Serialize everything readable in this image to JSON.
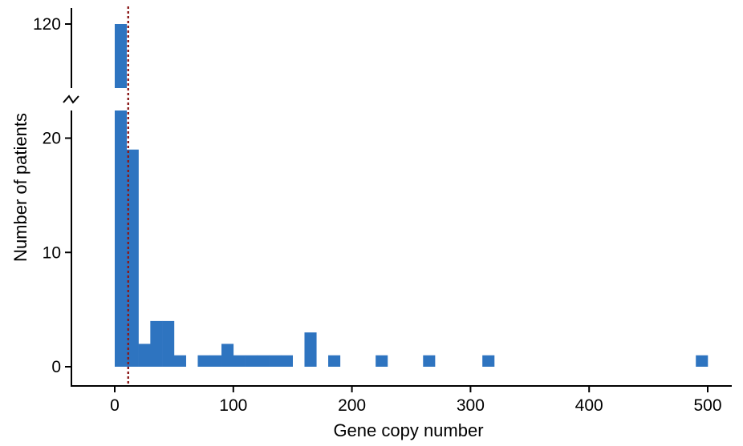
{
  "chart_data": {
    "type": "bar",
    "subtype": "histogram",
    "title": "",
    "xlabel": "Gene copy number",
    "ylabel": "Number of patients",
    "bin_width": 10,
    "x_ticks": [
      0,
      100,
      200,
      300,
      400,
      500
    ],
    "xlim": [
      -35,
      520
    ],
    "y_axis_break": true,
    "y_lower": {
      "ticks": [
        0,
        10,
        20
      ],
      "ylim": [
        0,
        22
      ]
    },
    "y_upper": {
      "ticks": [
        120
      ],
      "ylim": [
        113,
        121
      ]
    },
    "bins": [
      {
        "x0": 0,
        "x1": 10,
        "count": 120
      },
      {
        "x0": 10,
        "x1": 20,
        "count": 19
      },
      {
        "x0": 20,
        "x1": 30,
        "count": 2
      },
      {
        "x0": 30,
        "x1": 40,
        "count": 4
      },
      {
        "x0": 40,
        "x1": 50,
        "count": 4
      },
      {
        "x0": 50,
        "x1": 60,
        "count": 1
      },
      {
        "x0": 70,
        "x1": 80,
        "count": 1
      },
      {
        "x0": 80,
        "x1": 90,
        "count": 1
      },
      {
        "x0": 90,
        "x1": 100,
        "count": 2
      },
      {
        "x0": 100,
        "x1": 110,
        "count": 1
      },
      {
        "x0": 110,
        "x1": 120,
        "count": 1
      },
      {
        "x0": 120,
        "x1": 130,
        "count": 1
      },
      {
        "x0": 130,
        "x1": 140,
        "count": 1
      },
      {
        "x0": 140,
        "x1": 150,
        "count": 1
      },
      {
        "x0": 160,
        "x1": 170,
        "count": 3
      },
      {
        "x0": 180,
        "x1": 190,
        "count": 1
      },
      {
        "x0": 220,
        "x1": 230,
        "count": 1
      },
      {
        "x0": 260,
        "x1": 270,
        "count": 1
      },
      {
        "x0": 310,
        "x1": 320,
        "count": 1
      },
      {
        "x0": 490,
        "x1": 500,
        "count": 1
      }
    ],
    "reference_line": {
      "x": 10,
      "style": "dotted",
      "color": "#8b1a1a"
    },
    "bar_color": "#2e74c0",
    "grid": false,
    "legend": "none"
  }
}
